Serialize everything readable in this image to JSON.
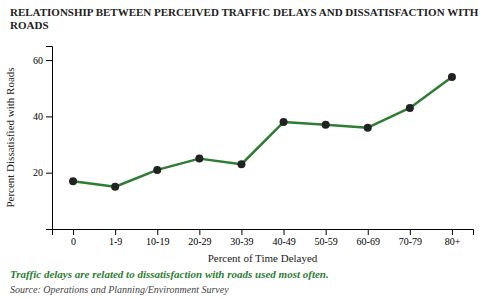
{
  "chart_data": {
    "type": "line",
    "title": "RELATIONSHIP BETWEEN PERCEIVED TRAFFIC DELAYS AND DISSATISFACTION WITH ROADS",
    "x_label": "Percent of Time Delayed",
    "y_label": "Percent Dissatisfied with Roads",
    "annotations": [
      "Traffic delays are related to dissatisfaction with roads used most often.",
      "Source: Operations and Planning/Environment Survey"
    ],
    "categories": [
      "0",
      "1-9",
      "10-19",
      "20-29",
      "30-39",
      "40-49",
      "50-59",
      "60-69",
      "70-79",
      "80+"
    ],
    "values": [
      17,
      15,
      21,
      25,
      23,
      38,
      37,
      36,
      43,
      54
    ],
    "color": "#2e7d32",
    "marker": "circle",
    "ylim": [
      0,
      65
    ],
    "yticks": [
      20,
      40,
      60
    ],
    "grid": false
  }
}
